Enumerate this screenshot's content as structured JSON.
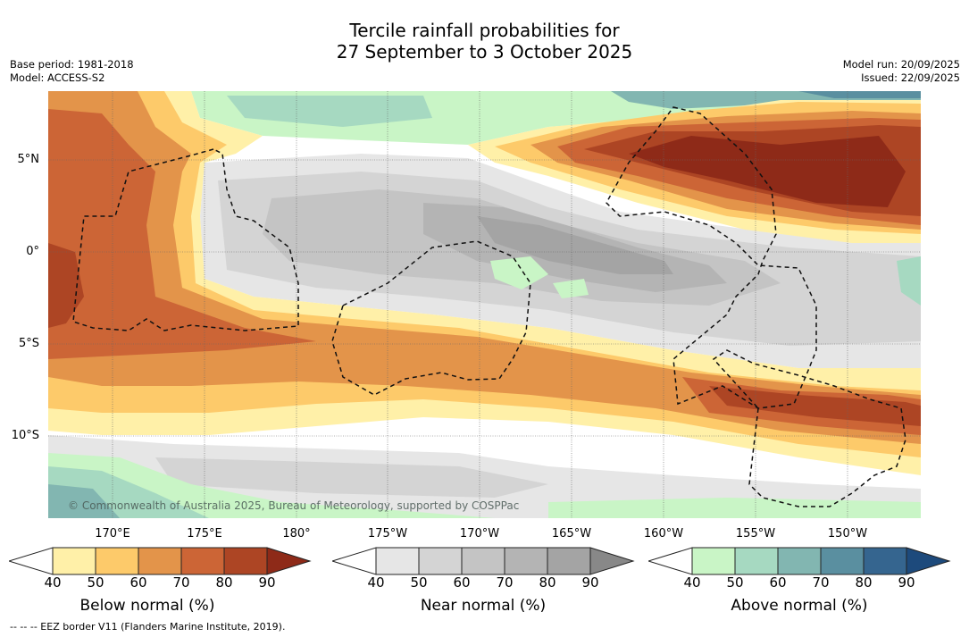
{
  "title_line1": "Tercile rainfall probabilities for",
  "title_line2": "27 September to 3 October 2025",
  "meta_left": {
    "base_period": "Base period: 1981-2018",
    "model": "Model: ACCESS-S2"
  },
  "meta_right": {
    "model_run": "Model run: 20/09/2025",
    "issued": "Issued: 22/09/2025"
  },
  "lat_labels": [
    "5°N",
    "0°",
    "5°S",
    "10°S"
  ],
  "lon_labels": [
    "170°E",
    "175°E",
    "180°",
    "175°W",
    "170°W",
    "165°W",
    "160°W",
    "155°W",
    "150°W"
  ],
  "copyright": "© Commonwealth of Australia 2025, Bureau of Meteorology, supported by COSPPac",
  "footnote": "--  --  -- EEZ border V11 (Flanders Marine Institute, 2019).",
  "colorbars": [
    {
      "title": "Below normal (%)",
      "ticks": [
        "40",
        "50",
        "60",
        "70",
        "80",
        "90"
      ],
      "colors": [
        "#fff0a8",
        "#fdca6a",
        "#e3944a",
        "#cc6536",
        "#ad4524",
        "#8e2a18"
      ]
    },
    {
      "title": "Near normal (%)",
      "ticks": [
        "40",
        "50",
        "60",
        "70",
        "80",
        "90"
      ],
      "colors": [
        "#e6e6e6",
        "#d4d4d4",
        "#c4c4c4",
        "#b4b4b4",
        "#a4a4a4",
        "#888888"
      ]
    },
    {
      "title": "Above normal (%)",
      "ticks": [
        "40",
        "50",
        "60",
        "70",
        "80",
        "90"
      ],
      "colors": [
        "#c9f5c6",
        "#a6d9c1",
        "#82b6b1",
        "#5a8fa0",
        "#35658f",
        "#1d4a7c"
      ]
    }
  ]
}
